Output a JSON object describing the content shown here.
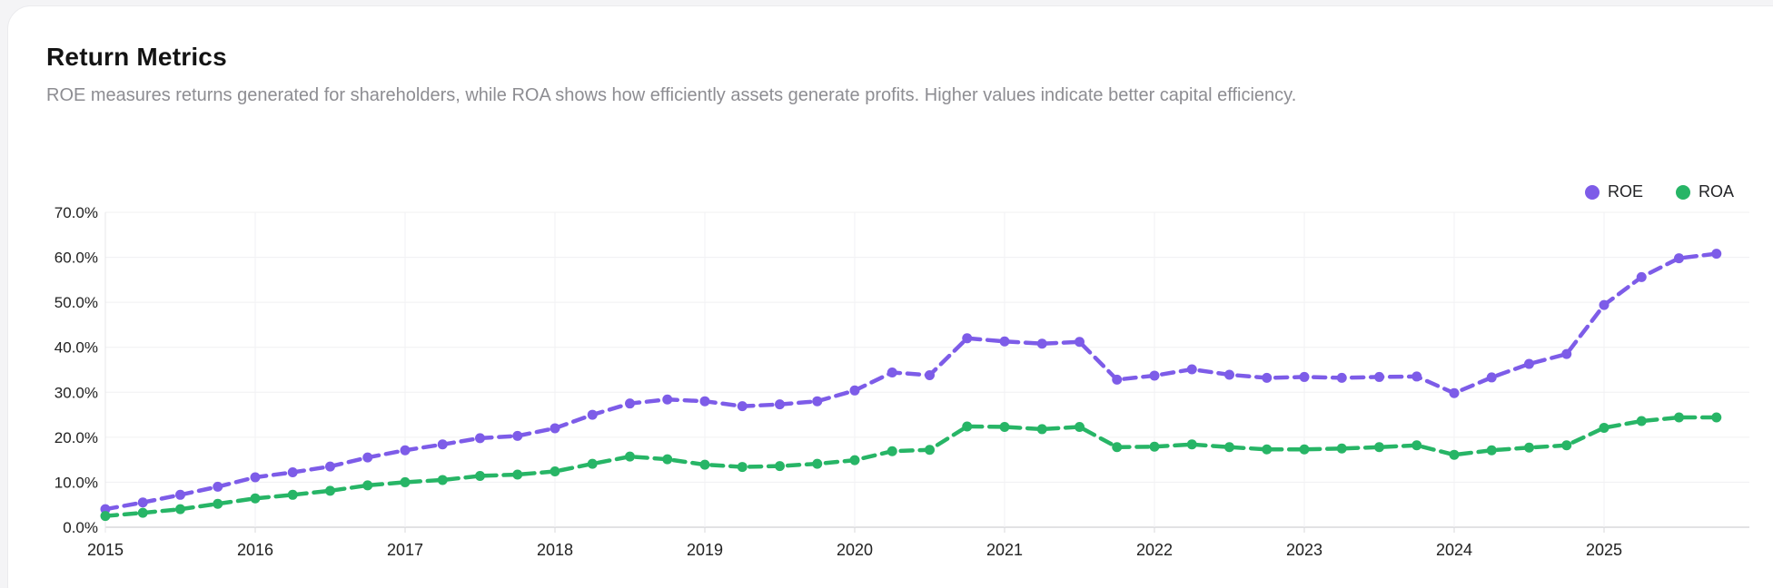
{
  "card": {
    "title": "Return Metrics",
    "subtitle": "ROE measures returns generated for shareholders, while ROA shows how efficiently assets generate profits. Higher values indicate better capital efficiency."
  },
  "legend": [
    {
      "label": "ROE",
      "color": "#7d5ce8"
    },
    {
      "label": "ROA",
      "color": "#27b566"
    }
  ],
  "chart_data": {
    "type": "line",
    "title": "Return Metrics",
    "x_years": [
      2015,
      2016,
      2017,
      2018,
      2019,
      2020,
      2021,
      2022,
      2023,
      2024,
      2025
    ],
    "points_per_year": 4,
    "x_frequency": "quarterly",
    "ylim": [
      0,
      70
    ],
    "ytick_step": 10,
    "ytick_format": "percent-one-decimal",
    "grid": true,
    "legend_position": "top-right",
    "line_style": "dashed-with-round-markers",
    "series": [
      {
        "name": "ROE",
        "color": "#7d5ce8",
        "values": [
          4.0,
          5.5,
          7.2,
          9.0,
          11.1,
          12.2,
          13.5,
          15.5,
          17.1,
          18.4,
          19.8,
          20.3,
          22.0,
          25.0,
          27.5,
          28.4,
          28.0,
          26.9,
          27.3,
          28.0,
          30.4,
          34.4,
          33.8,
          42.0,
          41.3,
          40.8,
          41.2,
          32.8,
          33.7,
          35.1,
          33.9,
          33.2,
          33.4,
          33.2,
          33.4,
          33.5,
          29.8,
          33.3,
          36.3,
          38.5,
          49.4,
          55.6,
          59.8,
          60.8
        ]
      },
      {
        "name": "ROA",
        "color": "#27b566",
        "values": [
          2.5,
          3.2,
          4.0,
          5.2,
          6.4,
          7.2,
          8.1,
          9.3,
          10.0,
          10.5,
          11.4,
          11.7,
          12.4,
          14.1,
          15.7,
          15.1,
          13.9,
          13.4,
          13.6,
          14.1,
          14.9,
          16.9,
          17.2,
          22.4,
          22.3,
          21.8,
          22.3,
          17.8,
          17.9,
          18.4,
          17.8,
          17.3,
          17.3,
          17.5,
          17.8,
          18.2,
          16.1,
          17.1,
          17.7,
          18.2,
          22.1,
          23.6,
          24.4,
          24.4
        ]
      }
    ]
  }
}
